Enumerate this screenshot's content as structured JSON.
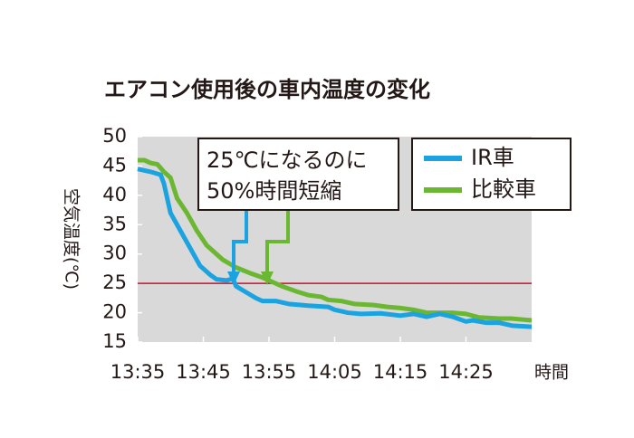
{
  "chart_data": {
    "type": "line",
    "title": "エアコン使用後の車内温度の変化",
    "y_label": "空気温度(℃)",
    "x_label": "時間",
    "annotation": [
      "25℃になるのに",
      "50%時間短縮"
    ],
    "xlim": [
      0,
      60
    ],
    "xticks": [
      {
        "value": 0,
        "label": "13:35"
      },
      {
        "value": 10,
        "label": "13:45"
      },
      {
        "value": 20,
        "label": "13:55"
      },
      {
        "value": 30,
        "label": "14:05"
      },
      {
        "value": 40,
        "label": "14:15"
      },
      {
        "value": 50,
        "label": "14:25"
      }
    ],
    "ylim": [
      15,
      50
    ],
    "yticks": [
      15,
      20,
      25,
      30,
      35,
      40,
      45,
      50
    ],
    "reference_line": {
      "value": 25,
      "color": "#c8102e"
    },
    "legend": "top-right",
    "series": [
      {
        "name": "IR車",
        "color": "#1aa3e0",
        "x": [
          0,
          2,
          3.5,
          4,
          5,
          6.5,
          8.5,
          9.5,
          11,
          12,
          13.5,
          14.5,
          15,
          16.5,
          18,
          19,
          21,
          23,
          26,
          29,
          30,
          32,
          34,
          37,
          40,
          42,
          44,
          46,
          48,
          50,
          51,
          53,
          55,
          57,
          60
        ],
        "values": [
          44.5,
          44,
          43.5,
          42,
          37,
          34,
          30,
          28,
          26.5,
          25.7,
          25.5,
          25.8,
          24.5,
          23.5,
          22.5,
          22,
          22,
          21.5,
          21.2,
          21,
          20.5,
          20,
          19.8,
          19.9,
          19.5,
          19.8,
          19.3,
          19.8,
          19.3,
          18.5,
          18.7,
          18.3,
          18.3,
          17.8,
          17.6
        ]
      },
      {
        "name": "比較車",
        "color": "#6cb731",
        "x": [
          0,
          1,
          2,
          3,
          4,
          5,
          6,
          7.5,
          9,
          10.5,
          12,
          13,
          15,
          17,
          19,
          20,
          22,
          24,
          26,
          28,
          29,
          31,
          33,
          36,
          38,
          40,
          42,
          44,
          46,
          48,
          50,
          52,
          55,
          57,
          60
        ],
        "values": [
          46,
          46,
          45.5,
          45.3,
          44,
          43,
          39.5,
          37,
          34,
          31.5,
          30,
          29,
          27.7,
          26.8,
          26,
          25.5,
          24.5,
          23.7,
          23,
          22.7,
          22.2,
          22,
          21.5,
          21.3,
          21,
          20.8,
          20.5,
          20,
          20,
          20,
          19.8,
          19.2,
          19,
          19,
          18.7
        ]
      }
    ]
  }
}
